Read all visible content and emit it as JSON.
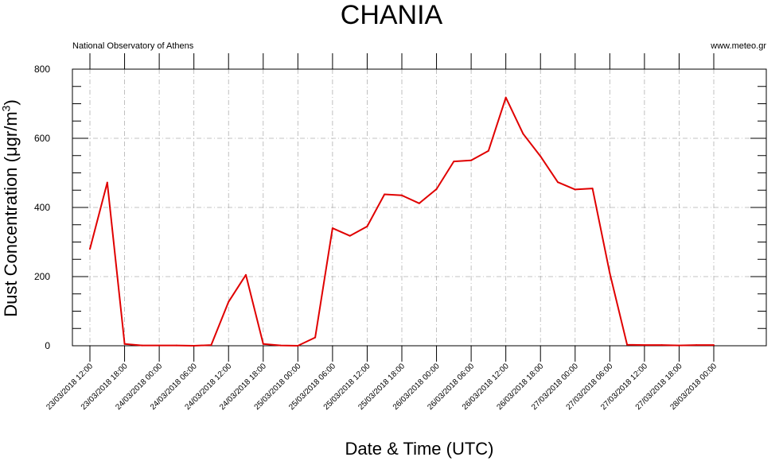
{
  "header": {
    "title": "CHANIA",
    "left_note": "National Observatory of Athens",
    "right_note": "www.meteo.gr"
  },
  "chart_data": {
    "type": "line",
    "title": "CHANIA",
    "xlabel": "Date & Time (UTC)",
    "ylabel_prefix": "Dust Concentration (μgr/m",
    "ylabel_sup": "3",
    "ylabel_suffix": ")",
    "ylim": [
      0,
      800
    ],
    "y_ticks": [
      0,
      200,
      400,
      600,
      800
    ],
    "grid": true,
    "line_color": "#e00000",
    "x_tick_labels": [
      "23/03/2018 12:00",
      "23/03/2018 18:00",
      "24/03/2018 00:00",
      "24/03/2018 06:00",
      "24/03/2018 12:00",
      "24/03/2018 18:00",
      "25/03/2018 00:00",
      "25/03/2018 06:00",
      "25/03/2018 12:00",
      "25/03/2018 18:00",
      "26/03/2018 00:00",
      "26/03/2018 06:00",
      "26/03/2018 12:00",
      "26/03/2018 18:00",
      "27/03/2018 00:00",
      "27/03/2018 06:00",
      "27/03/2018 12:00",
      "27/03/2018 18:00",
      "28/03/2018 00:00"
    ],
    "series": [
      {
        "x": [
          "23/03/2018 12:00",
          "23/03/2018 15:00",
          "23/03/2018 18:00",
          "23/03/2018 21:00",
          "24/03/2018 00:00",
          "24/03/2018 03:00",
          "24/03/2018 06:00",
          "24/03/2018 09:00",
          "24/03/2018 12:00",
          "24/03/2018 15:00",
          "24/03/2018 18:00",
          "24/03/2018 21:00",
          "25/03/2018 00:00",
          "25/03/2018 03:00",
          "25/03/2018 06:00",
          "25/03/2018 09:00",
          "25/03/2018 12:00",
          "25/03/2018 15:00",
          "25/03/2018 18:00",
          "25/03/2018 21:00",
          "26/03/2018 00:00",
          "26/03/2018 03:00",
          "26/03/2018 06:00",
          "26/03/2018 09:00",
          "26/03/2018 12:00",
          "26/03/2018 15:00",
          "26/03/2018 18:00",
          "26/03/2018 21:00",
          "27/03/2018 00:00",
          "27/03/2018 03:00",
          "27/03/2018 06:00",
          "27/03/2018 09:00",
          "27/03/2018 12:00",
          "27/03/2018 15:00",
          "27/03/2018 18:00",
          "27/03/2018 21:00",
          "28/03/2018 00:00"
        ],
        "values": [
          280,
          472,
          5,
          1,
          1,
          1,
          0,
          2,
          127,
          205,
          5,
          1,
          0,
          24,
          340,
          318,
          345,
          438,
          435,
          412,
          453,
          533,
          536,
          564,
          718,
          613,
          548,
          473,
          452,
          455,
          210,
          3,
          2,
          2,
          1,
          2,
          2
        ]
      }
    ]
  }
}
